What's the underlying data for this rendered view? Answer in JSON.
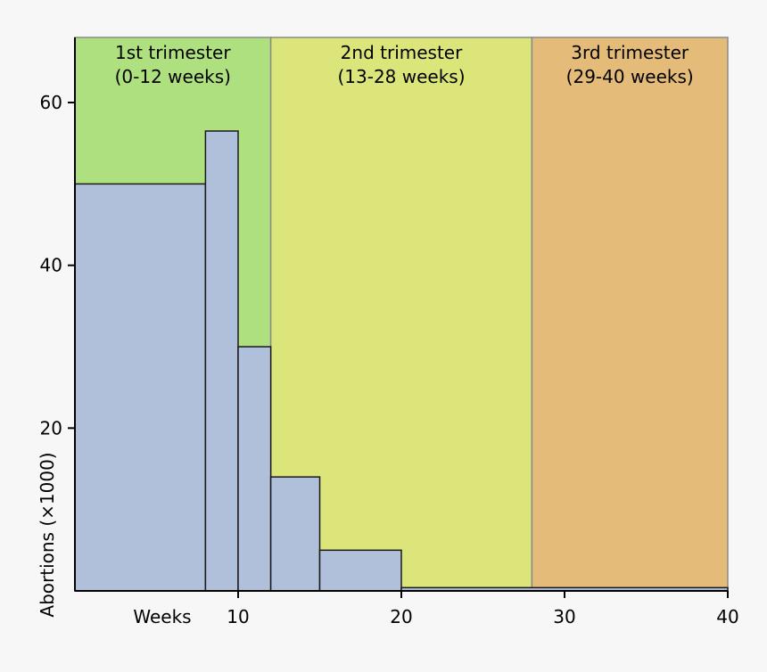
{
  "chart_data": {
    "type": "bar",
    "title": "",
    "xlabel": "Weeks",
    "ylabel": "Abortions (×1000)",
    "xlim": [
      0,
      40
    ],
    "ylim": [
      0,
      68
    ],
    "x_ticks": [
      10,
      20,
      30,
      40
    ],
    "y_ticks": [
      20,
      40,
      60
    ],
    "grid": false,
    "trimesters": [
      {
        "line1": "1st trimester",
        "line2": "(0-12 weeks)",
        "x_start": 0,
        "x_end": 12,
        "color": "#aee07f"
      },
      {
        "line1": "2nd trimester",
        "line2": "(13-28 weeks)",
        "x_start": 12,
        "x_end": 28,
        "color": "#dbe57a"
      },
      {
        "line1": "3rd trimester",
        "line2": "(29-40 weeks)",
        "x_start": 28,
        "x_end": 40,
        "color": "#e4bb78"
      }
    ],
    "bars": [
      {
        "x_start": 0,
        "x_end": 8,
        "value": 50
      },
      {
        "x_start": 8,
        "x_end": 10,
        "value": 56.5
      },
      {
        "x_start": 10,
        "x_end": 12,
        "value": 30
      },
      {
        "x_start": 12,
        "x_end": 15,
        "value": 14
      },
      {
        "x_start": 15,
        "x_end": 20,
        "value": 5
      },
      {
        "x_start": 20,
        "x_end": 40,
        "value": 0.4
      }
    ],
    "bar_color": "#b0bfda"
  }
}
